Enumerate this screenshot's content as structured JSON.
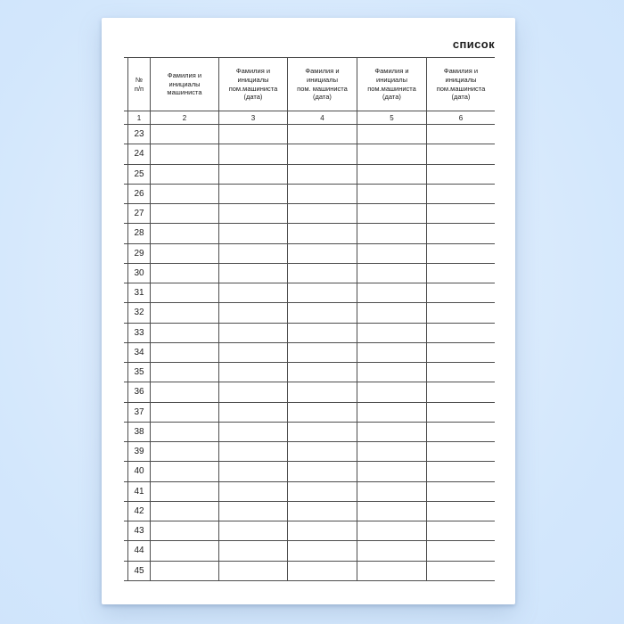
{
  "page": {
    "title": "список"
  },
  "table": {
    "columns": [
      {
        "number": "1",
        "header": "№\nп/п"
      },
      {
        "number": "2",
        "header": "Фамилия и\nинициалы\nмашиниста"
      },
      {
        "number": "3",
        "header": "Фамилия и\nинициалы\nпом.машиниста\n(дата)"
      },
      {
        "number": "4",
        "header": "Фамилия и\nинициалы\nпом. машиниста\n(дата)"
      },
      {
        "number": "5",
        "header": "Фамилия и\nинициалы\nпом.машиниста\n(дата)"
      },
      {
        "number": "6",
        "header": "Фамилия и\nинициалы\nпом.машиниста\n(дата)"
      }
    ],
    "row_numbers": [
      23,
      24,
      25,
      26,
      27,
      28,
      29,
      30,
      31,
      32,
      33,
      34,
      35,
      36,
      37,
      38,
      39,
      40,
      41,
      42,
      43,
      44,
      45
    ],
    "empty_cell": ""
  },
  "colors": {
    "background": "#d3e7fc",
    "page": "#ffffff",
    "line": "#4d4d4d",
    "text": "#1b1b1b"
  }
}
